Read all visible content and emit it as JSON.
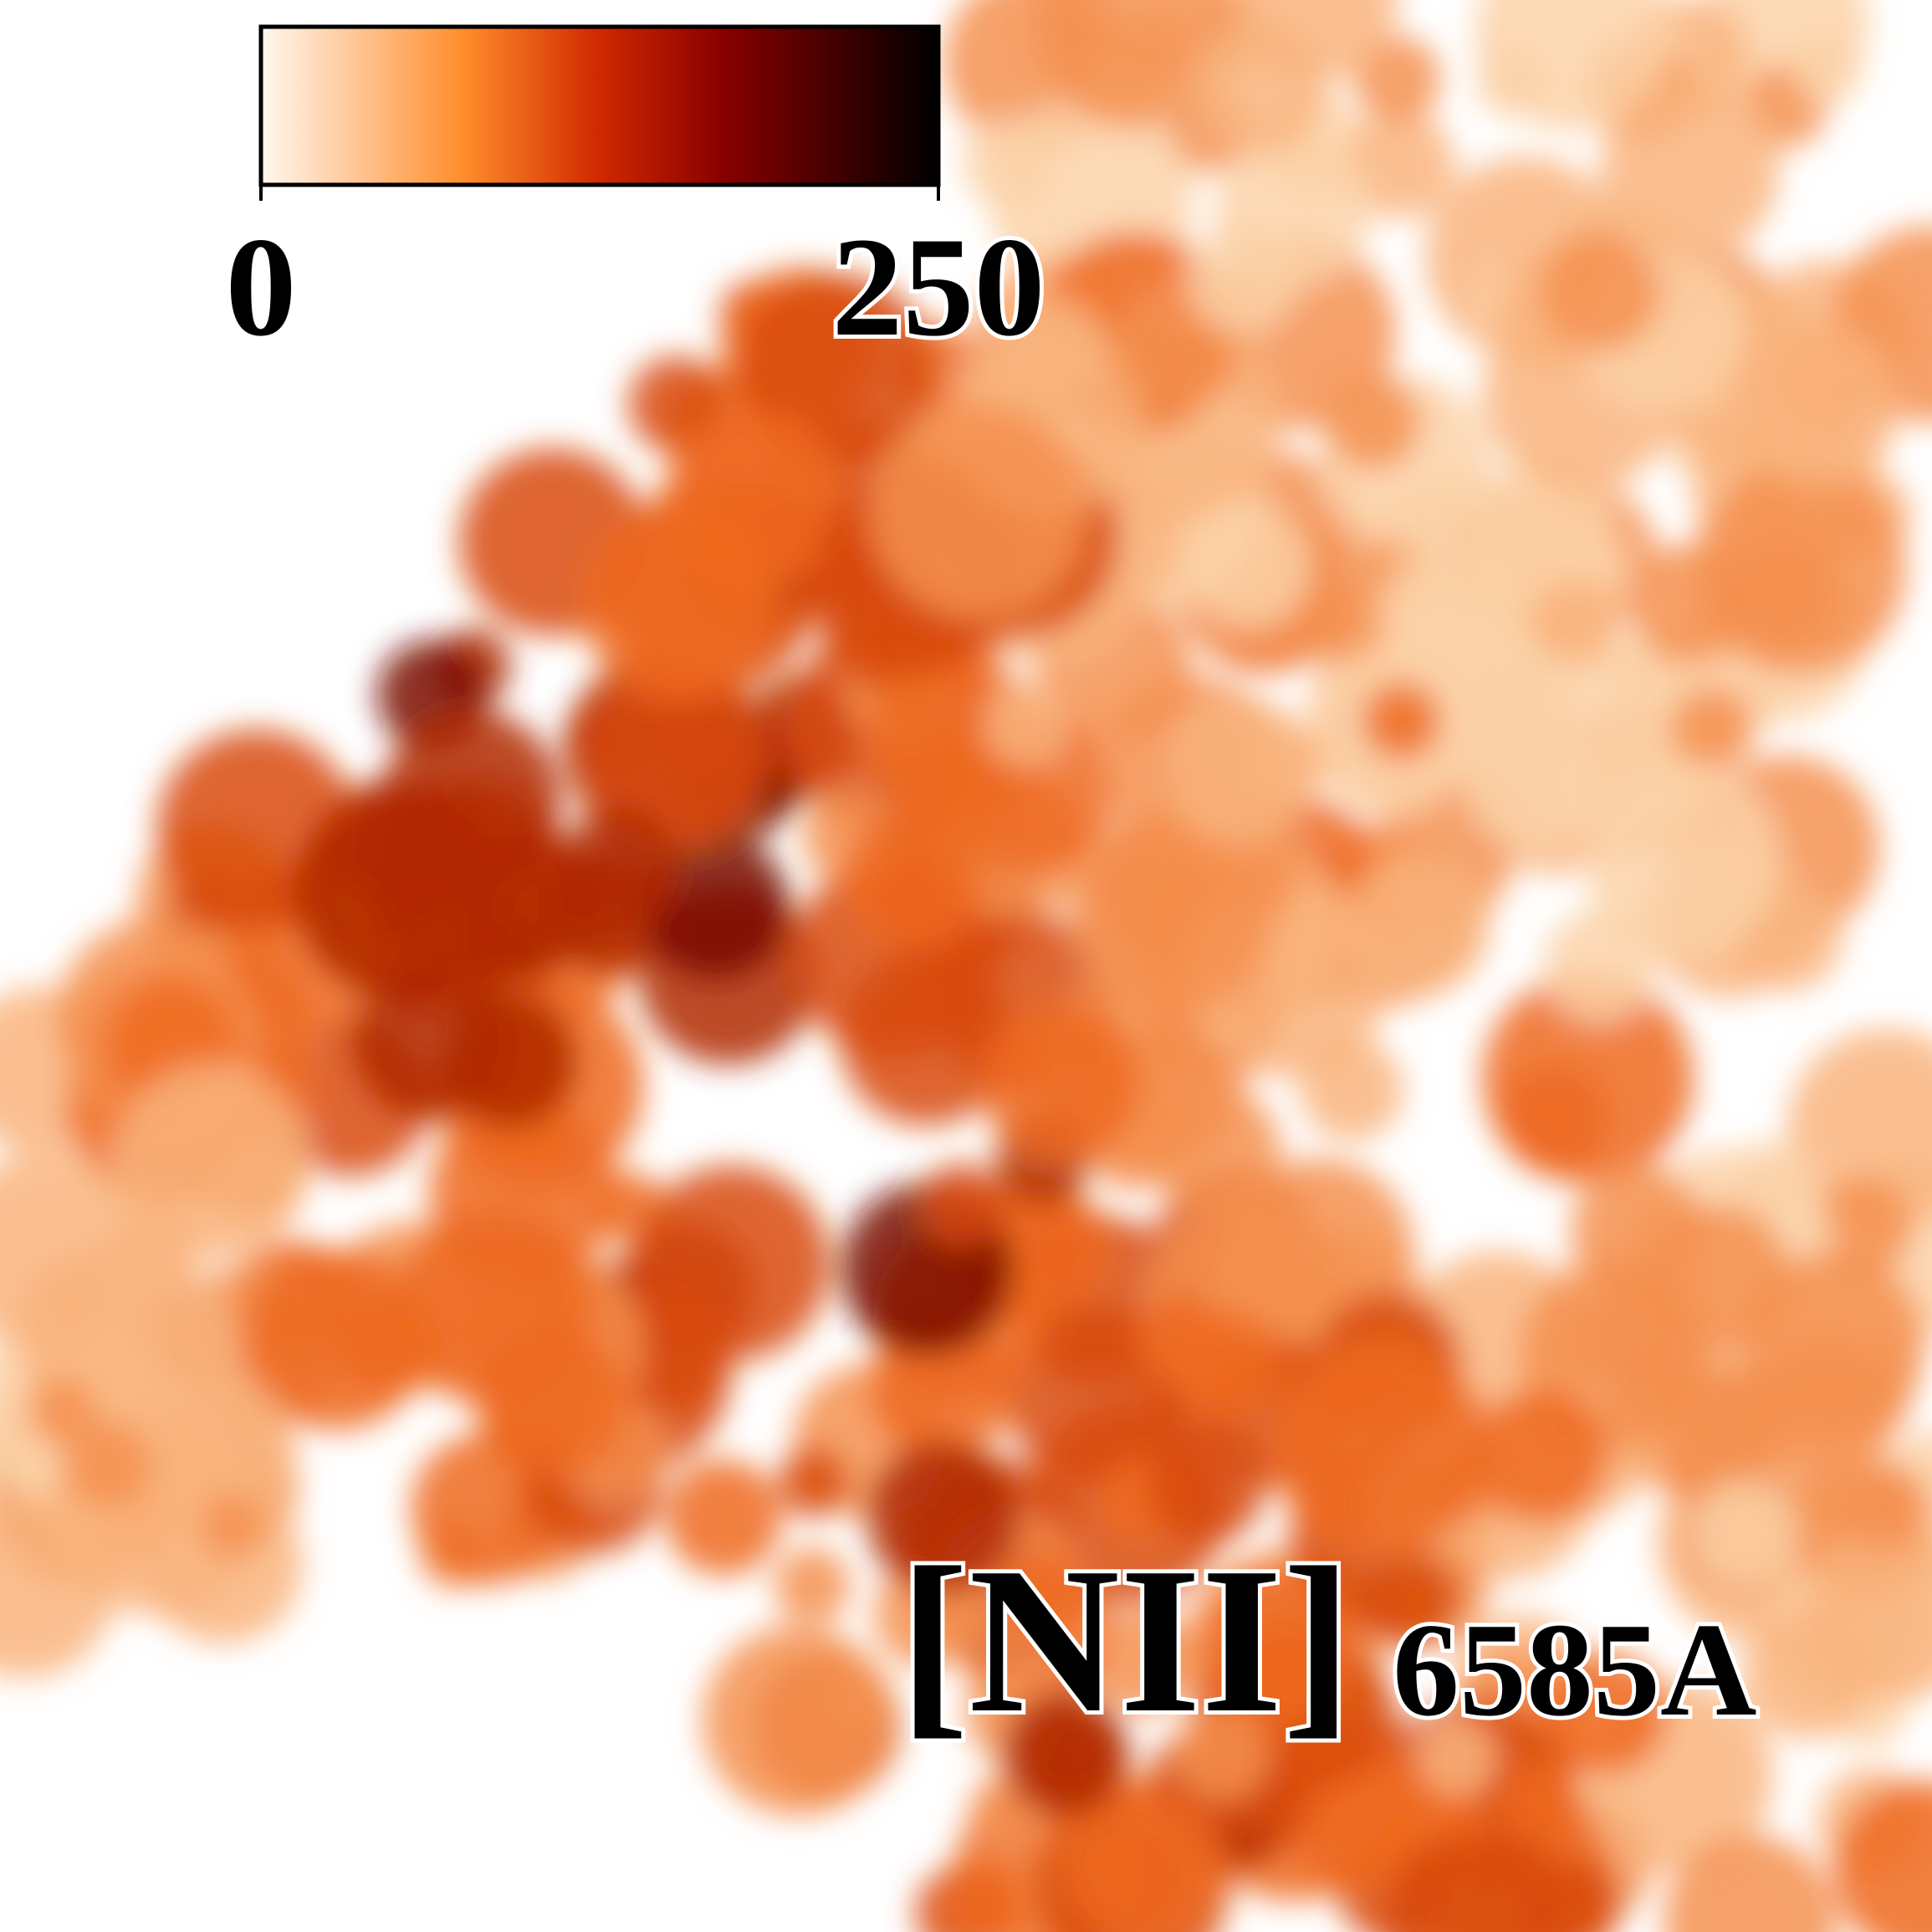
{
  "colorbar": {
    "ticks": [
      0,
      250
    ]
  },
  "label": {
    "main": "[NII]",
    "sub": "6585A"
  }
}
